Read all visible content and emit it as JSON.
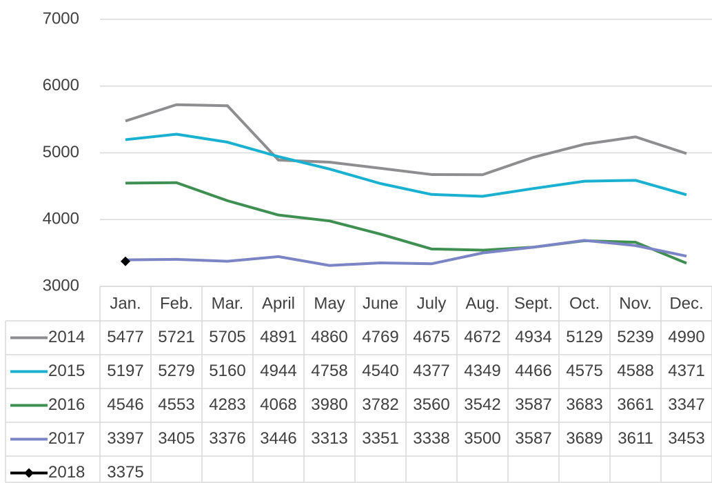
{
  "chart_data": {
    "type": "line",
    "categories": [
      "Jan.",
      "Feb.",
      "Mar.",
      "April",
      "May",
      "June",
      "July",
      "Aug.",
      "Sept.",
      "Oct.",
      "Nov.",
      "Dec."
    ],
    "series": [
      {
        "name": "2014",
        "color": "#8e8e90",
        "values": [
          5477,
          5721,
          5705,
          4891,
          4860,
          4769,
          4675,
          4672,
          4934,
          5129,
          5239,
          4990
        ]
      },
      {
        "name": "2015",
        "color": "#1ab1d0",
        "values": [
          5197,
          5279,
          5160,
          4944,
          4758,
          4540,
          4377,
          4349,
          4466,
          4575,
          4588,
          4371
        ]
      },
      {
        "name": "2016",
        "color": "#3f8f52",
        "values": [
          4546,
          4553,
          4283,
          4068,
          3980,
          3782,
          3560,
          3542,
          3587,
          3683,
          3661,
          3347
        ]
      },
      {
        "name": "2017",
        "color": "#7b84c4",
        "values": [
          3397,
          3405,
          3376,
          3446,
          3313,
          3351,
          3338,
          3500,
          3587,
          3689,
          3611,
          3453
        ]
      },
      {
        "name": "2018",
        "color": "#000000",
        "marker": "diamond",
        "values": [
          3375,
          null,
          null,
          null,
          null,
          null,
          null,
          null,
          null,
          null,
          null,
          null
        ]
      }
    ],
    "ylim": [
      3000,
      7000
    ],
    "yticks": [
      3000,
      4000,
      5000,
      6000,
      7000
    ],
    "grid": true,
    "data_table": true
  }
}
